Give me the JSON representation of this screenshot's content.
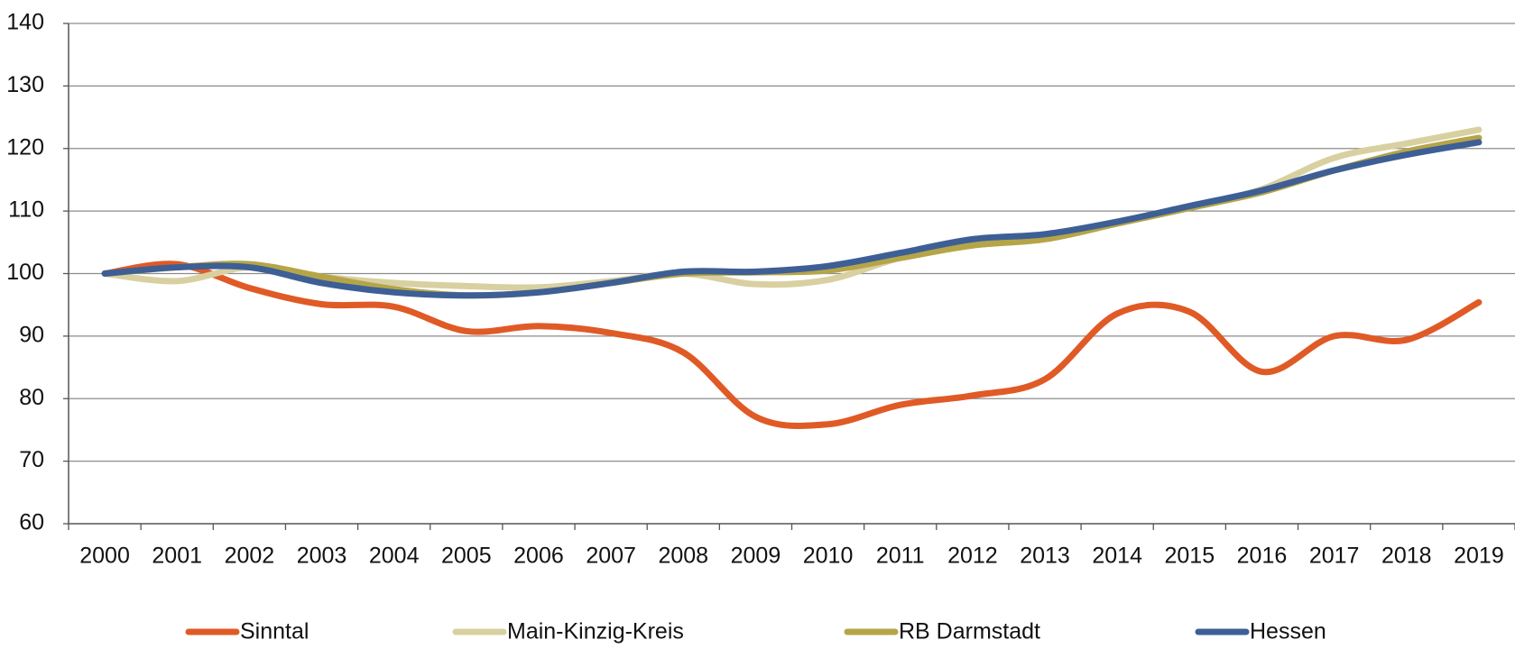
{
  "chart_data": {
    "type": "line",
    "categories": [
      "2000",
      "2001",
      "2002",
      "2003",
      "2004",
      "2005",
      "2006",
      "2007",
      "2008",
      "2009",
      "2010",
      "2011",
      "2012",
      "2013",
      "2014",
      "2015",
      "2016",
      "2017",
      "2018",
      "2019"
    ],
    "series": [
      {
        "name": "Sinntal",
        "color": "#e05a26",
        "values": [
          100,
          101.5,
          97.7,
          95.1,
          94.7,
          90.8,
          91.6,
          90.5,
          87.4,
          77.1,
          75.9,
          79,
          80.5,
          83.1,
          93.6,
          93.9,
          84.3,
          90,
          89.4,
          95.4
        ]
      },
      {
        "name": "Main-Kinzig-Kreis",
        "color": "#d8d0a0",
        "values": [
          100,
          98.8,
          101,
          99.5,
          98.5,
          98,
          97.8,
          98.8,
          100,
          98.3,
          99,
          102.5,
          104.5,
          105.5,
          108,
          110.5,
          113.5,
          118.5,
          120.8,
          123
        ]
      },
      {
        "name": "RB Darmstadt",
        "color": "#b5a548",
        "values": [
          100,
          101,
          101.5,
          99.5,
          97.5,
          96.5,
          97,
          98.5,
          100,
          100.2,
          100.5,
          102.5,
          104.5,
          105.5,
          108,
          110.5,
          113,
          116.5,
          119.5,
          121.7
        ]
      },
      {
        "name": "Hessen",
        "color": "#3d5f95",
        "values": [
          100,
          101,
          101,
          98.5,
          97,
          96.5,
          97,
          98.5,
          100.3,
          100.3,
          101.2,
          103.3,
          105.5,
          106.3,
          108.3,
          110.8,
          113.3,
          116.5,
          119,
          121
        ]
      }
    ],
    "ylim": [
      60,
      140
    ],
    "yticks": [
      60,
      70,
      80,
      90,
      100,
      110,
      120,
      130,
      140
    ],
    "grid": true,
    "legend": "bottom"
  }
}
